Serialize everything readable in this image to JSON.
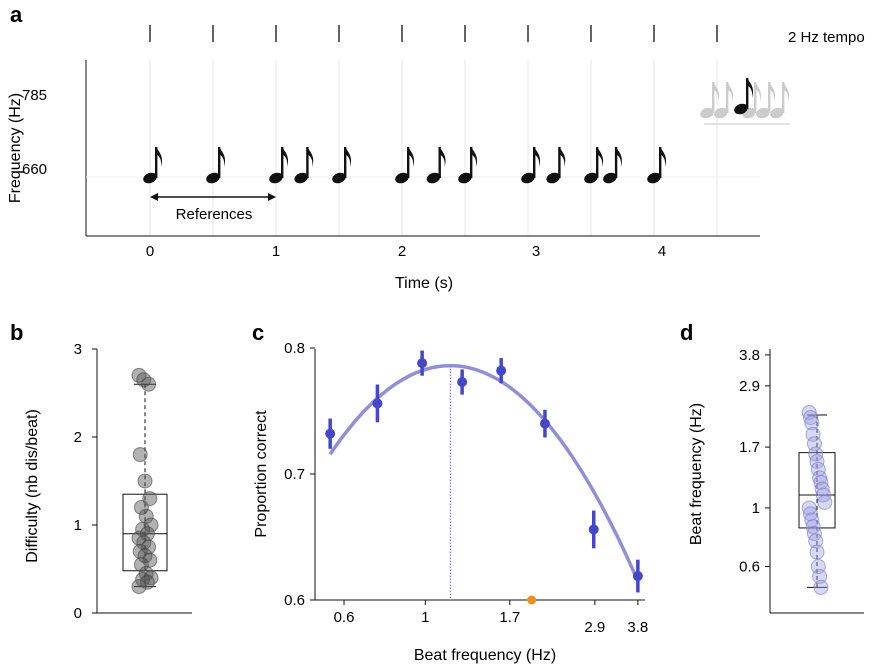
{
  "chart_data": [
    {
      "panel": "a",
      "type": "scatter",
      "tempo_label": "2 Hz tempo",
      "xlabel": "Time (s)",
      "ylabel": "Frequency (Hz)",
      "xlim": [
        -0.4,
        4.75
      ],
      "x_ticks": [
        "0",
        "1",
        "2",
        "3",
        "4"
      ],
      "y_ticks": [
        "660",
        "785"
      ],
      "beat_times": [
        0,
        0.5,
        1.0,
        1.5,
        2.0,
        2.5,
        3.0,
        3.5,
        4.0,
        4.5
      ],
      "notes": [
        {
          "t": 0.0,
          "f": 660
        },
        {
          "t": 0.5,
          "f": 660
        },
        {
          "t": 1.0,
          "f": 660
        },
        {
          "t": 1.2,
          "f": 660
        },
        {
          "t": 1.5,
          "f": 660
        },
        {
          "t": 2.0,
          "f": 660
        },
        {
          "t": 2.25,
          "f": 660
        },
        {
          "t": 2.5,
          "f": 660
        },
        {
          "t": 3.0,
          "f": 660
        },
        {
          "t": 3.2,
          "f": 660
        },
        {
          "t": 3.5,
          "f": 660
        },
        {
          "t": 3.65,
          "f": 660
        },
        {
          "t": 4.0,
          "f": 660
        }
      ],
      "probe_frequency": 785,
      "reference_label": "References",
      "reference_span": [
        0,
        1
      ],
      "colors": {
        "notes": "#111111",
        "probe_faded": "#cccccc",
        "grid": "#e6e6e6"
      }
    },
    {
      "panel": "b",
      "type": "box",
      "ylabel": "Difficulty (nb dis/beat)",
      "ylim": [
        0,
        3
      ],
      "y_ticks": [
        "0",
        "1",
        "2",
        "3"
      ],
      "box": {
        "q1": 0.48,
        "median": 0.9,
        "q3": 1.35,
        "whisker_low": 0.3,
        "whisker_high": 2.6
      },
      "points": [
        2.7,
        2.65,
        2.6,
        1.8,
        1.5,
        1.3,
        1.2,
        1.1,
        1.0,
        0.95,
        0.9,
        0.85,
        0.8,
        0.75,
        0.7,
        0.65,
        0.6,
        0.55,
        0.45,
        0.4,
        0.38,
        0.35,
        0.3
      ],
      "colors": {
        "points": "#555555"
      }
    },
    {
      "panel": "c",
      "type": "line",
      "xlabel": "Beat frequency (Hz)",
      "ylabel": "Proportion correct",
      "ylim": [
        0.6,
        0.8
      ],
      "xscale": "log",
      "x_ticks": [
        0.6,
        1,
        1.7,
        2.9,
        3.8
      ],
      "x_tick_labels": [
        "0.6",
        "1",
        "1.7",
        "2.9",
        "3.8"
      ],
      "y_ticks": [
        "0.6",
        "0.7",
        "0.8"
      ],
      "points": [
        {
          "x": 0.55,
          "y": 0.732,
          "err": 0.012
        },
        {
          "x": 0.74,
          "y": 0.756,
          "err": 0.015
        },
        {
          "x": 0.98,
          "y": 0.788,
          "err": 0.01
        },
        {
          "x": 1.26,
          "y": 0.773,
          "err": 0.01
        },
        {
          "x": 1.61,
          "y": 0.782,
          "err": 0.01
        },
        {
          "x": 2.12,
          "y": 0.74,
          "err": 0.011
        },
        {
          "x": 2.88,
          "y": 0.656,
          "err": 0.015
        },
        {
          "x": 3.8,
          "y": 0.619,
          "err": 0.013
        }
      ],
      "fit": {
        "peak_x": 1.17,
        "peak_y": 0.786
      },
      "peak_marker_x": 1.17,
      "orange_marker_x": 1.95,
      "colors": {
        "points": "#4646c8",
        "fit": "#7b7bd2",
        "marker": "#f0901e"
      }
    },
    {
      "panel": "d",
      "type": "box",
      "ylabel": "Beat frequency (Hz)",
      "yscale": "log",
      "ylim": [
        0.4,
        4.0
      ],
      "y_ticks": [
        0.6,
        1,
        1.7,
        2.9,
        3.8
      ],
      "y_tick_labels": [
        "0.6",
        "1",
        "1.7",
        "2.9",
        "3.8"
      ],
      "box": {
        "q1": 0.84,
        "median": 1.12,
        "q3": 1.62,
        "whisker_low": 0.5,
        "whisker_high": 2.25
      },
      "points": [
        2.3,
        2.2,
        2.1,
        1.9,
        1.75,
        1.6,
        1.5,
        1.4,
        1.3,
        1.25,
        1.18,
        1.12,
        1.05,
        1.0,
        0.95,
        0.9,
        0.85,
        0.8,
        0.75,
        0.68,
        0.6,
        0.55,
        0.5
      ],
      "colors": {
        "points": "#9d9de0"
      }
    }
  ]
}
